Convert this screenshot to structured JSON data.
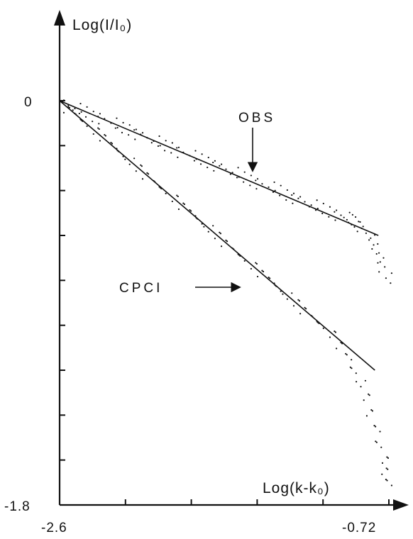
{
  "chart_data": {
    "type": "scatter",
    "title": "",
    "xlabel": "Log(k-k₀)",
    "ylabel": "Log(I/I₀)",
    "xlim": [
      -2.6,
      -0.72
    ],
    "ylim": [
      -1.8,
      0
    ],
    "x_tick_labels": [
      "-2.6",
      "-0.72"
    ],
    "y_tick_labels": [
      "0",
      "-1.8"
    ],
    "grid": false,
    "series": [
      {
        "name": "OBS",
        "fit": {
          "type": "line",
          "x": [
            -2.6,
            -0.78
          ],
          "y": [
            0,
            -0.6
          ]
        },
        "points": [
          [
            -2.55,
            -0.02
          ],
          [
            -2.5,
            -0.035
          ],
          [
            -2.45,
            -0.05
          ],
          [
            -2.4,
            -0.07
          ],
          [
            -2.35,
            -0.08
          ],
          [
            -2.3,
            -0.1
          ],
          [
            -2.25,
            -0.12
          ],
          [
            -2.2,
            -0.13
          ],
          [
            -2.15,
            -0.15
          ],
          [
            -2.1,
            -0.165
          ],
          [
            -2.05,
            -0.18
          ],
          [
            -2.0,
            -0.2
          ],
          [
            -1.95,
            -0.21
          ],
          [
            -1.9,
            -0.23
          ],
          [
            -1.85,
            -0.245
          ],
          [
            -1.8,
            -0.26
          ],
          [
            -1.75,
            -0.275
          ],
          [
            -1.7,
            -0.29
          ],
          [
            -1.65,
            -0.305
          ],
          [
            -1.6,
            -0.32
          ],
          [
            -1.55,
            -0.34
          ],
          [
            -1.5,
            -0.355
          ],
          [
            -1.45,
            -0.37
          ],
          [
            -1.4,
            -0.385
          ],
          [
            -1.35,
            -0.4
          ],
          [
            -1.3,
            -0.42
          ],
          [
            -1.25,
            -0.435
          ],
          [
            -1.2,
            -0.45
          ],
          [
            -1.15,
            -0.465
          ],
          [
            -1.1,
            -0.48
          ],
          [
            -1.05,
            -0.495
          ],
          [
            -1.0,
            -0.51
          ],
          [
            -0.97,
            -0.52
          ],
          [
            -0.94,
            -0.53
          ],
          [
            -0.91,
            -0.54
          ],
          [
            -0.88,
            -0.56
          ],
          [
            -0.85,
            -0.59
          ],
          [
            -0.82,
            -0.62
          ],
          [
            -0.79,
            -0.66
          ],
          [
            -0.77,
            -0.7
          ],
          [
            -0.75,
            -0.74
          ],
          [
            -0.73,
            -0.79
          ]
        ]
      },
      {
        "name": "CPCI",
        "fit": {
          "type": "line",
          "x": [
            -2.6,
            -0.8
          ],
          "y": [
            0,
            -1.2
          ]
        },
        "points": [
          [
            -2.55,
            -0.04
          ],
          [
            -2.5,
            -0.07
          ],
          [
            -2.45,
            -0.1
          ],
          [
            -2.4,
            -0.135
          ],
          [
            -2.35,
            -0.165
          ],
          [
            -2.3,
            -0.2
          ],
          [
            -2.25,
            -0.235
          ],
          [
            -2.2,
            -0.27
          ],
          [
            -2.15,
            -0.3
          ],
          [
            -2.1,
            -0.335
          ],
          [
            -2.05,
            -0.37
          ],
          [
            -2.0,
            -0.4
          ],
          [
            -1.95,
            -0.435
          ],
          [
            -1.9,
            -0.47
          ],
          [
            -1.85,
            -0.5
          ],
          [
            -1.8,
            -0.535
          ],
          [
            -1.75,
            -0.57
          ],
          [
            -1.7,
            -0.6
          ],
          [
            -1.65,
            -0.635
          ],
          [
            -1.6,
            -0.67
          ],
          [
            -1.55,
            -0.7
          ],
          [
            -1.5,
            -0.735
          ],
          [
            -1.45,
            -0.77
          ],
          [
            -1.4,
            -0.8
          ],
          [
            -1.35,
            -0.835
          ],
          [
            -1.3,
            -0.87
          ],
          [
            -1.25,
            -0.9
          ],
          [
            -1.2,
            -0.935
          ],
          [
            -1.15,
            -0.97
          ],
          [
            -1.1,
            -1.0
          ],
          [
            -1.05,
            -1.04
          ],
          [
            -1.0,
            -1.09
          ],
          [
            -0.96,
            -1.14
          ],
          [
            -0.92,
            -1.2
          ],
          [
            -0.88,
            -1.26
          ],
          [
            -0.85,
            -1.32
          ],
          [
            -0.82,
            -1.39
          ],
          [
            -0.79,
            -1.46
          ],
          [
            -0.77,
            -1.53
          ],
          [
            -0.75,
            -1.6
          ],
          [
            -0.74,
            -1.65
          ],
          [
            -0.73,
            -1.7
          ]
        ]
      }
    ],
    "annotations": [
      {
        "text": "OBS",
        "target_series": "OBS",
        "arrow": "down"
      },
      {
        "text": "CPCI",
        "target_series": "CPCI",
        "arrow": "right"
      }
    ]
  }
}
